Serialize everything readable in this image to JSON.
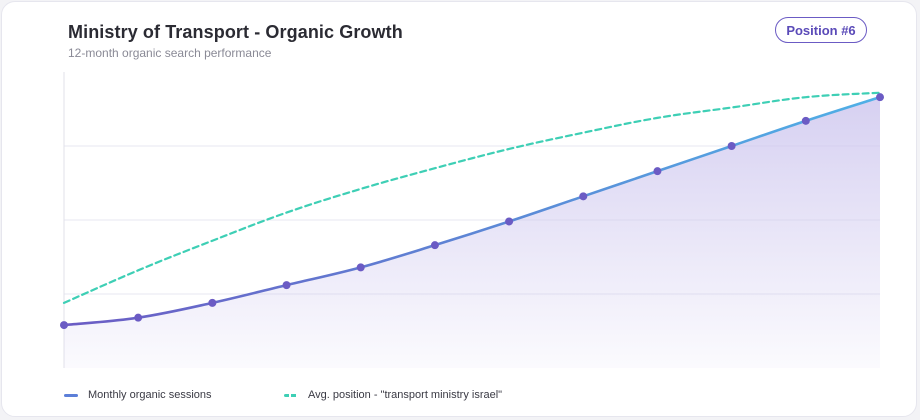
{
  "header": {
    "title": "Ministry of Transport - Organic Growth",
    "subtitle": "12-month organic search performance",
    "badge": "Position #6"
  },
  "colors": {
    "sessions_line_start": "#6b5bc4",
    "sessions_line_end": "#4fb0e6",
    "sessions_marker": "#6b5bc4",
    "sessions_fill": "#cfc8ef",
    "position_line": "#3ecfb5",
    "grid": "#e7e7f0"
  },
  "chart_data": {
    "type": "line",
    "x": [
      1,
      2,
      3,
      4,
      5,
      6,
      7,
      8,
      9,
      10,
      11,
      12
    ],
    "xlabel": "",
    "ylabel": "",
    "ylim": [
      0,
      100
    ],
    "grid": true,
    "legend_position": "bottom-left",
    "series": [
      {
        "name": "Monthly organic sessions",
        "style": "solid",
        "markers": true,
        "area_fill": true,
        "values": [
          14.5,
          17,
          22,
          28,
          34,
          41.5,
          49.5,
          58,
          66.5,
          75,
          83.5,
          91.5
        ]
      },
      {
        "name": "Avg. position - \"transport ministry israel\"",
        "style": "dashed",
        "markers": false,
        "area_fill": false,
        "values": [
          22,
          33,
          43,
          52.5,
          60.5,
          67.5,
          74,
          79.5,
          84.5,
          88,
          91.5,
          93
        ]
      }
    ]
  }
}
